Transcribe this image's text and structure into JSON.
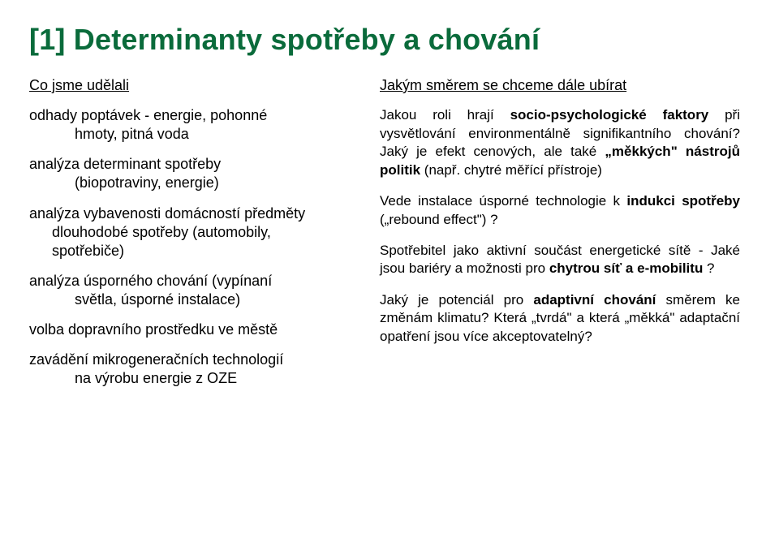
{
  "title": "[1] Determinanty spotřeby a chování",
  "left": {
    "heading": "Co jsme udělali",
    "items": [
      {
        "line1": "odhady poptávek - energie, pohonné",
        "line2": "hmoty, pitná voda"
      },
      {
        "line1": "analýza determinant spotřeby",
        "line2": "(biopotraviny, energie)"
      },
      {
        "line1": "analýza vybavenosti domácností předměty",
        "line2_a": "dlouhodobé spotřeby (automobily,",
        "line2_b": "spotřebiče)"
      },
      {
        "line1": "analýza úsporného chování (vypínaní",
        "line2": "světla, úsporné instalace)"
      },
      {
        "line1": "volba dopravního prostředku ve městě"
      },
      {
        "line1": "zavádění mikrogeneračních technologií",
        "line2": "na výrobu energie z OZE"
      }
    ]
  },
  "right": {
    "heading": "Jakým směrem se chceme dále ubírat",
    "para1_a": "Jakou roli hrají ",
    "para1_b": "socio-psychologické faktory",
    "para1_c": " při vysvětlování environmentálně signifikantního chování? Jaký je efekt cenových, ale také ",
    "para1_d": "„měkkých\" nástrojů politik",
    "para1_e": " (např. chytré měřící přístroje)",
    "para2_a": "Vede instalace úsporné technologie k ",
    "para2_b": "indukci spotřeby",
    "para2_c": " („rebound effect\") ?",
    "para3_a": "Spotřebitel jako aktivní součást energetické sítě - Jaké jsou bariéry a možnosti pro ",
    "para3_b": "chytrou síť a e-mobilitu",
    "para3_c": " ?",
    "para4_a": "Jaký je potenciál pro ",
    "para4_b": "adaptivní chování",
    "para4_c": " směrem ke změnám klimatu? Která „tvrdá\" a která „měkká\" adaptační opatření jsou více akceptovatelný?"
  }
}
